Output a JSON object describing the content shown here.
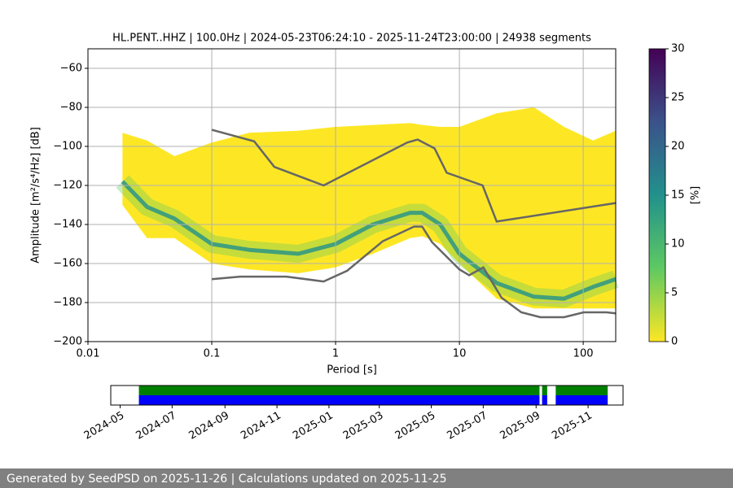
{
  "chart_data": {
    "type": "ppsd",
    "title": "HL.PENT..HHZ | 100.0Hz | 2024-05-23T06:24:10 - 2025-11-24T23:00:00 | 24938 segments",
    "xlabel": "Period [s]",
    "ylabel": "Amplitude [m²/s⁴/Hz] [dB]",
    "log_x": true,
    "grid": true,
    "xlim": [
      0.01,
      183
    ],
    "xticks": [
      0.01,
      0.1,
      1,
      10,
      100
    ],
    "ylim": [
      -200,
      -50
    ],
    "yticks": [
      {
        "value": -200,
        "label": "−200"
      },
      {
        "value": -180,
        "label": "−180"
      },
      {
        "value": -160,
        "label": "−160"
      },
      {
        "value": -140,
        "label": "−140"
      },
      {
        "value": -120,
        "label": "−120"
      },
      {
        "value": -100,
        "label": "−100"
      },
      {
        "value": -80,
        "label": "−80"
      },
      {
        "value": -60,
        "label": "−60"
      }
    ],
    "x": [
      0.019,
      0.03,
      0.05,
      0.1,
      0.2,
      0.5,
      1,
      2,
      4,
      5,
      7,
      10,
      20,
      40,
      70,
      120,
      183
    ],
    "upper": [
      -93,
      -97,
      -105,
      -98,
      -93,
      -92,
      -90,
      -89,
      -88,
      -89,
      -90,
      -90,
      -83,
      -80,
      -90,
      -97,
      -92
    ],
    "mode": [
      -118,
      -131,
      -137,
      -150,
      -153,
      -155,
      -150,
      -140,
      -134,
      -134,
      -140,
      -155,
      -170,
      -177,
      -178,
      -172,
      -168
    ],
    "lower": [
      -130,
      -147,
      -147,
      -160,
      -163,
      -165,
      -162,
      -155,
      -147,
      -146,
      -150,
      -160,
      -178,
      -183,
      -183,
      -183,
      -183
    ],
    "nhnm": {
      "x": [
        0.1,
        0.22,
        0.32,
        0.8,
        3.8,
        4.6,
        6.3,
        7.9,
        15.4,
        20,
        183
      ],
      "values": [
        -91.5,
        -97.4,
        -110.5,
        -120,
        -98,
        -96.5,
        -101,
        -113.5,
        -120,
        -138.5,
        -129
      ]
    },
    "nlnm": {
      "x": [
        0.1,
        0.17,
        0.4,
        0.8,
        1.24,
        2.4,
        4.3,
        5,
        6,
        10,
        12,
        15.6,
        21.9,
        31.6,
        45,
        70,
        101,
        154,
        183
      ],
      "values": [
        -168,
        -166.7,
        -166.7,
        -169.2,
        -163.7,
        -148.6,
        -141.1,
        -141.1,
        -149,
        -163,
        -166,
        -162,
        -177.5,
        -185,
        -187.5,
        -187.5,
        -185,
        -185,
        -185.5
      ]
    },
    "colorbar": {
      "label": "[%]",
      "lim": [
        0,
        30
      ],
      "ticks": [
        0,
        5,
        10,
        15,
        20,
        25,
        30
      ],
      "colors": [
        "#fde725",
        "#5ec962",
        "#21918c",
        "#3b528b",
        "#440154"
      ]
    },
    "timeline": {
      "xlim": [
        "2024-04-20",
        "2025-12-12"
      ],
      "xticks": [
        "2024-05",
        "2024-07",
        "2024-09",
        "2024-11",
        "2025-01",
        "2025-03",
        "2025-05",
        "2025-07",
        "2025-09",
        "2025-11"
      ],
      "coverage": [
        [
          "2024-05-23",
          "2025-09-05"
        ],
        [
          "2025-09-08",
          "2025-09-14"
        ],
        [
          "2025-09-24",
          "2025-11-24"
        ]
      ],
      "colors": [
        "#008000",
        "#0000ff"
      ]
    }
  },
  "footer": "Generated by SeedPSD on 2025-11-26 | Calculations updated on 2025-11-25"
}
